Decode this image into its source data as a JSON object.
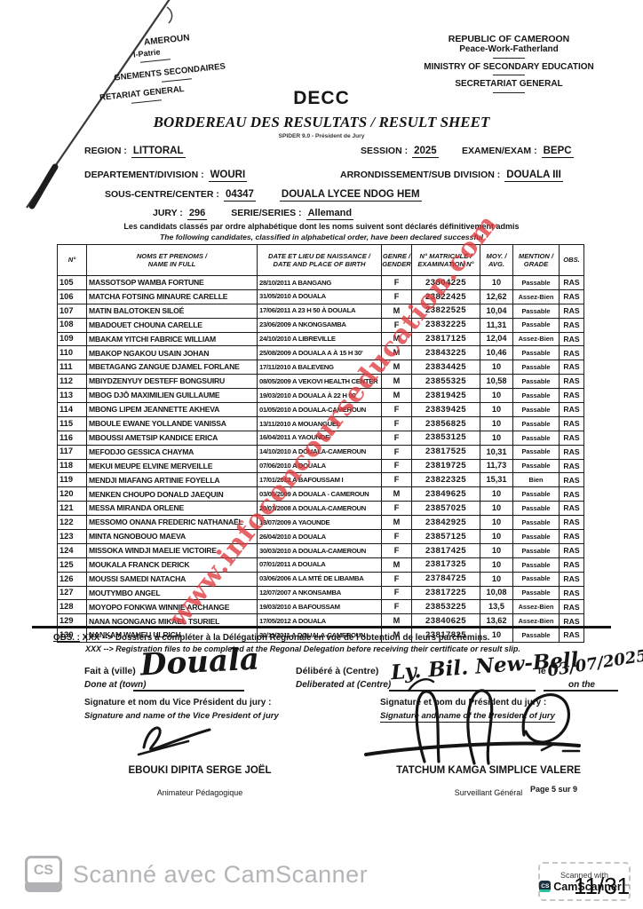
{
  "watermark": {
    "text": "www.infoconcourseducation.com",
    "color": "#de3a3e"
  },
  "header": {
    "left_fragments": {
      "line1": "AMEROUN",
      "line2": "l-Patrie",
      "line3": "GNEMENTS SECONDAIRES",
      "line4": "RETARIAT GENERAL"
    },
    "right": {
      "line1": "REPUBLIC OF CAMEROON",
      "line2": "Peace-Work-Fatherland",
      "line3": "MINISTRY OF SECONDARY EDUCATION",
      "line4": "SECRETARIAT GENERAL"
    },
    "org": "DECC",
    "title": "BORDEREAU DES RESULTATS / RESULT SHEET",
    "subtitle": "SPIDER 9.0 -  Président de Jury"
  },
  "meta": {
    "region_label": "REGION :",
    "region": "LITTORAL",
    "session_label": "SESSION :",
    "session": "2025",
    "exam_label": "EXAMEN/EXAM :",
    "exam": "BEPC",
    "division_label": "DEPARTEMENT/DIVISION :",
    "division": "WOURI",
    "subdivision_label": "ARRONDISSEMENT/SUB DIVISION :",
    "subdivision": "DOUALA III",
    "center_label": "SOUS-CENTRE/CENTER :",
    "center_code": "04347",
    "center_name": "DOUALA LYCEE NDOG HEM",
    "jury_label": "JURY :",
    "jury": "296",
    "series_label": "SERIE/SERIES :",
    "series": "Allemand"
  },
  "notice": {
    "fr": "Les candidats classés par ordre alphabétique dont les noms suivent sont déclarés définitivement admis",
    "en": "The following candidates, classified in alphabetical order, have been declared successful"
  },
  "table": {
    "headers": [
      {
        "line1": "N°",
        "line2": ""
      },
      {
        "line1": "NOMS ET PRENOMS /",
        "line2": "NAME IN FULL"
      },
      {
        "line1": "DATE ET LIEU DE NAISSANCE /",
        "line2": "DATE AND PLACE OF BIRTH"
      },
      {
        "line1": "GENRE /",
        "line2": "GENDER"
      },
      {
        "line1": "N° MATRICULE /",
        "line2": "EXAMINATION N°"
      },
      {
        "line1": "MOY. /",
        "line2": "AVG."
      },
      {
        "line1": "MENTION /",
        "line2": "GRADE"
      },
      {
        "line1": "OBS.",
        "line2": ""
      }
    ],
    "rows": [
      {
        "num": "105",
        "name": "MASSOTSOP WAMBA FORTUNE",
        "birth": "28/10/2011 A BANGANG",
        "gender": "F",
        "matricule": "23804225",
        "avg": "10",
        "grade": "Passable",
        "obs": "RAS"
      },
      {
        "num": "106",
        "name": "MATCHA FOTSING MINAURE CARELLE",
        "birth": "31/05/2010 A DOUALA",
        "gender": "F",
        "matricule": "23822425",
        "avg": "12,62",
        "grade": "Assez-Bien",
        "obs": "RAS"
      },
      {
        "num": "107",
        "name": "MATIN BALOTOKEN SILOÉ",
        "birth": "17/06/2011 A 23 H 50 À DOUALA",
        "gender": "M",
        "matricule": "23822525",
        "avg": "10,04",
        "grade": "Passable",
        "obs": "RAS"
      },
      {
        "num": "108",
        "name": "MBADOUET CHOUNA CARELLE",
        "birth": "23/06/2009 A NKONGSAMBA",
        "gender": "F",
        "matricule": "23832225",
        "avg": "11,31",
        "grade": "Passable",
        "obs": "RAS"
      },
      {
        "num": "109",
        "name": "MBAKAM YITCHI FABRICE WILLIAM",
        "birth": "24/10/2010 A LIBREVILLE",
        "gender": "M",
        "matricule": "23817125",
        "avg": "12,04",
        "grade": "Assez-Bien",
        "obs": "RAS"
      },
      {
        "num": "110",
        "name": "MBAKOP NGAKOU USAIN JOHAN",
        "birth": "25/08/2009 A DOUALA A À 15 H 30'",
        "gender": "M",
        "matricule": "23843225",
        "avg": "10,46",
        "grade": "Passable",
        "obs": "RAS"
      },
      {
        "num": "111",
        "name": "MBETAGANG ZANGUE DJAMEL FORLANE",
        "birth": "17/11/2010 A BALEVENG",
        "gender": "M",
        "matricule": "23834425",
        "avg": "10",
        "grade": "Passable",
        "obs": "RAS"
      },
      {
        "num": "112",
        "name": "MBIYDZENYUY DESTEFF BONGSUIRU",
        "birth": "08/05/2009 A VEKOVI HEALTH CENTER",
        "gender": "M",
        "matricule": "23855325",
        "avg": "10,58",
        "grade": "Passable",
        "obs": "RAS"
      },
      {
        "num": "113",
        "name": "MBOG DJÔ MAXIMILIEN GUILLAUME",
        "birth": "19/03/2010 A DOUALA À 22 H 00",
        "gender": "M",
        "matricule": "23819425",
        "avg": "10",
        "grade": "Passable",
        "obs": "RAS"
      },
      {
        "num": "114",
        "name": "MBONG LIPEM JEANNETTE AKHEVA",
        "birth": "01/05/2010 A DOUALA-CAMEROUN",
        "gender": "F",
        "matricule": "23839425",
        "avg": "10",
        "grade": "Passable",
        "obs": "RAS"
      },
      {
        "num": "115",
        "name": "MBOULE EWANE YOLLANDE VANISSA",
        "birth": "13/11/2010 A MOUANGUEL",
        "gender": "F",
        "matricule": "23856825",
        "avg": "10",
        "grade": "Passable",
        "obs": "RAS"
      },
      {
        "num": "116",
        "name": "MBOUSSI AMETSIP KANDICE ERICA",
        "birth": "16/04/2011 A YAOUNDE",
        "gender": "F",
        "matricule": "23853125",
        "avg": "10",
        "grade": "Passable",
        "obs": "RAS"
      },
      {
        "num": "117",
        "name": "MEFODJO GESSICA CHAYMA",
        "birth": "14/10/2010 A DOUALA-CAMEROUN",
        "gender": "F",
        "matricule": "23817525",
        "avg": "10,31",
        "grade": "Passable",
        "obs": "RAS"
      },
      {
        "num": "118",
        "name": "MEKUI MEUPE ELVINE MERVEILLE",
        "birth": "07/06/2010 A DOUALA",
        "gender": "F",
        "matricule": "23819725",
        "avg": "11,73",
        "grade": "Passable",
        "obs": "RAS"
      },
      {
        "num": "119",
        "name": "MENDJI MIAFANG ARTINIE FOYELLA",
        "birth": "17/01/2012 A BAFOUSSAM I",
        "gender": "F",
        "matricule": "23822325",
        "avg": "15,31",
        "grade": "Bien",
        "obs": "RAS"
      },
      {
        "num": "120",
        "name": "MENKEN CHOUPO DONALD JAEQUIN",
        "birth": "03/05/2009 A DOUALA - CAMEROUN",
        "gender": "M",
        "matricule": "23849625",
        "avg": "10",
        "grade": "Passable",
        "obs": "RAS"
      },
      {
        "num": "121",
        "name": "MESSA MIRANDA ORLENE",
        "birth": "20/01/2008 A DOUALA-CAMEROUN",
        "gender": "F",
        "matricule": "23857025",
        "avg": "10",
        "grade": "Passable",
        "obs": "RAS"
      },
      {
        "num": "122",
        "name": "MESSOMO ONANA FREDERIC NATHANAËL",
        "birth": "13/07/2009 A YAOUNDE",
        "gender": "M",
        "matricule": "23842925",
        "avg": "10",
        "grade": "Passable",
        "obs": "RAS"
      },
      {
        "num": "123",
        "name": "MINTA NGNOBOUO MAEVA",
        "birth": "26/04/2010 A DOUALA",
        "gender": "F",
        "matricule": "23857125",
        "avg": "10",
        "grade": "Passable",
        "obs": "RAS"
      },
      {
        "num": "124",
        "name": "MISSOKA WINDJI MAELIE VICTOIRE",
        "birth": "30/03/2010 A DOUALA-CAMEROUN",
        "gender": "F",
        "matricule": "23817425",
        "avg": "10",
        "grade": "Passable",
        "obs": "RAS"
      },
      {
        "num": "125",
        "name": "MOUKALA FRANCK DERICK",
        "birth": "07/01/2011 A DOUALA",
        "gender": "M",
        "matricule": "23817325",
        "avg": "10",
        "grade": "Passable",
        "obs": "RAS"
      },
      {
        "num": "126",
        "name": "MOUSSI SAMEDI NATACHA",
        "birth": "03/06/2006 A LA MTÉ DE LIBAMBA",
        "gender": "F",
        "matricule": "23784725",
        "avg": "10",
        "grade": "Passable",
        "obs": "RAS"
      },
      {
        "num": "127",
        "name": "MOUTYMBO ANGEL",
        "birth": "12/07/2007 A NKONSAMBA",
        "gender": "F",
        "matricule": "23817225",
        "avg": "10,08",
        "grade": "Passable",
        "obs": "RAS"
      },
      {
        "num": "128",
        "name": "MOYOPO FONKWA WINNIE ARCHANGE",
        "birth": "19/03/2010 A BAFOUSSAM",
        "gender": "F",
        "matricule": "23853225",
        "avg": "13,5",
        "grade": "Assez-Bien",
        "obs": "RAS"
      },
      {
        "num": "129",
        "name": "NANA NGONGANG MIKAEL TSURIEL",
        "birth": "17/05/2012 A DOUALA",
        "gender": "M",
        "matricule": "23840625",
        "avg": "13,62",
        "grade": "Assez-Bien",
        "obs": "RAS"
      },
      {
        "num": "130",
        "name": "NANKAM WAHEU ULRICH",
        "birth": "30/11/2011 A DOUALA-CAMEROUN",
        "gender": "M",
        "matricule": "23817825",
        "avg": "10",
        "grade": "Passable",
        "obs": "RAS"
      }
    ]
  },
  "obs_note": {
    "label": "OBS. :",
    "fr_text": "XXX --> Dossiers à compléter à la Délégation Régionale en vue de l'obtention de leurs parchemins.",
    "en_text": "XXX --> Registration files to be completed at the Regonal Delegation before receiving their certificate or result slip."
  },
  "signoff": {
    "done_at_fr": "Fait à (ville)",
    "done_at_en": "Done at (town)",
    "town_handwritten": "Douala",
    "deliberated_fr": "Délibéré à (Centre)",
    "deliberated_en": "Deliberated at (Centre)",
    "centre_handwritten": "Ly. Bil. New-Bell",
    "date_label_fr": "le",
    "date_label_en": "on the",
    "date_handwritten": "03/07/2025",
    "vp_label_fr": "Signature et nom du Vice Président du jury :",
    "vp_label_en": "Signature and name of the Vice President of jury",
    "p_label_fr": "Signature et nom  du Président du jury :",
    "p_label_en": "Signature and name of the President of jury",
    "vp_name": "EBOUKI DIPITA SERGE JOËL",
    "vp_role": "Animateur Pédagogique",
    "p_name": "TATCHUM KAMGA SIMPLICE VALERE",
    "p_role": "Surveillant Général",
    "page_label": "Page 5 sur 9"
  },
  "footer": {
    "cs_logo": "CS",
    "scanned_text": "Scanné avec CamScanner",
    "badge_line1": "Scanned with",
    "badge_cs": "CS",
    "badge_line2": "CamScanner",
    "badge_tm": "™",
    "page_indicator": "11/31"
  }
}
